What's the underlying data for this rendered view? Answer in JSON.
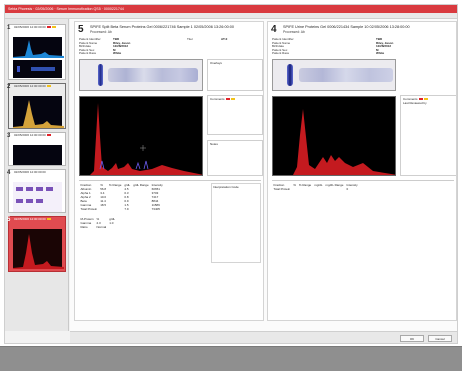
{
  "window": {
    "title": "Sebia Phoresis · 02/05/2006 · Serum Immunofixation QS5 · 0000221744"
  },
  "sidebar": {
    "samples": [
      {
        "num": "1",
        "header": "02/05/2006 12:00:00:00",
        "flag_colors": [
          "#e2232a",
          "#f2c21a"
        ]
      },
      {
        "num": "2",
        "header": "02/05/2006 12:00:00:00",
        "flag_colors": [
          "#f2c21a"
        ]
      },
      {
        "num": "3",
        "header": "02/05/2006 12:00:00:00",
        "flag_colors": [
          "#e2232a"
        ]
      },
      {
        "num": "4",
        "header": "02/05/2006 12:00:00:00",
        "flag_colors": []
      },
      {
        "num": "5",
        "header": "02/05/2006 12:00:00:00",
        "flag_colors": [
          "#f2c21a"
        ]
      }
    ]
  },
  "left_pane": {
    "number": "5",
    "title": "SPIFE Split Beta Serum Proteins  Gel 0006/221746  Sample 1  02/05/2006  13:26:00:00",
    "subtitle": "Processed: Ab",
    "patient": [
      {
        "k": "Patient Identifier",
        "v": "TBD"
      },
      {
        "k": "Patient Name",
        "v": "Riley, Jason"
      },
      {
        "k": "Birthdate",
        "v": "12/28/2012"
      },
      {
        "k": "Patient Sex",
        "v": "M"
      },
      {
        "k": "Patient Race",
        "v": "White"
      }
    ],
    "titer_label": "Titer",
    "titer_value": "AT-0",
    "overlays_label": "Overlays",
    "comments_label": "Comments",
    "notes_label": "Notes",
    "interp_label": "Interpretation Code",
    "results_headers": [
      "Fraction",
      "%",
      "% Range",
      "g/dL",
      "g/dL Range",
      "Intensity"
    ],
    "results": [
      [
        "Albumin",
        "56.8",
        "",
        "4.5",
        "",
        "60651"
      ],
      [
        "Alpha 1",
        "3.4",
        "",
        "0.3",
        "",
        "3703"
      ],
      [
        "Alpha 2",
        "10.0",
        "",
        "0.8",
        "",
        "7417"
      ],
      [
        "Beta",
        "11.4",
        "",
        "0.9",
        "",
        "8844"
      ],
      [
        "Gamma",
        "18.5",
        "",
        "1.5",
        "",
        "11589"
      ]
    ],
    "total_label": "Total Protein",
    "total_g": "7.9",
    "total_intensity": "73405",
    "mp_headers": [
      "M-Protein",
      "%",
      "g/dL"
    ],
    "mp_rows": [
      [
        "Gamma",
        "2.3",
        "1.0"
      ]
    ],
    "ratio_label": "Ratio",
    "ratio_value": "Normal"
  },
  "right_pane": {
    "number": "4",
    "title": "SPIFE Urine Proteins  Gel 0006/221434  Sample 10  02/05/2006  13:28:00:00",
    "subtitle": "Processed: Ab",
    "patient": [
      {
        "k": "Patient Identifier",
        "v": "TBD"
      },
      {
        "k": "Patient Name",
        "v": "Riley, Jason"
      },
      {
        "k": "Birthdate",
        "v": "12/28/2012"
      },
      {
        "k": "Patient Sex",
        "v": "M"
      },
      {
        "k": "Patient Race",
        "v": "White"
      }
    ],
    "comments_label": "Comments",
    "last_reviewed_label": "Last Reviewed by",
    "results_headers": [
      "Fraction",
      "%",
      "% Range",
      "mg/dL",
      "mg/dL Range",
      "Intensity"
    ],
    "total_label": "Total Protein",
    "total_value": "0"
  },
  "footer": {
    "ok_label": "OK",
    "cancel_label": "Cancel"
  },
  "colors": {
    "accent": "#d93a3f",
    "trace": "#c41a1f",
    "flag_red": "#e2232a",
    "flag_yellow": "#f2c21a"
  }
}
